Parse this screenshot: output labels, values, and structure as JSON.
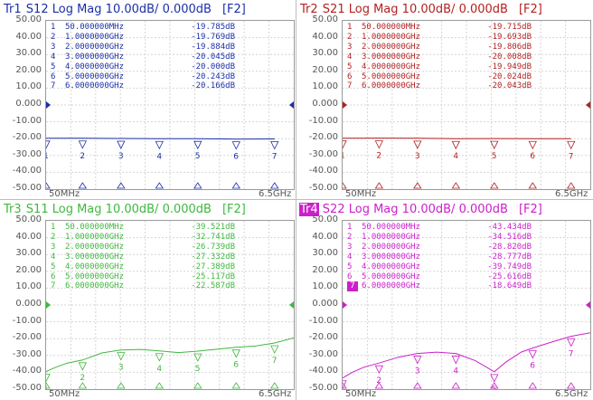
{
  "panes": [
    {
      "id": "tr1",
      "color": "#1b2fa8",
      "trace_label": "Tr1",
      "highlight": false,
      "measurement": "S12",
      "format": "Log Mag",
      "scale": "10.00dB/",
      "reference": "0.000dB",
      "function_key": "[F2]",
      "x_start": "50MHz",
      "x_stop": "6.5GHz",
      "y_ticks": [
        "50.00",
        "40.00",
        "30.00",
        "20.00",
        "10.00",
        "0.000",
        "-10.00",
        "-20.00",
        "-30.00",
        "-40.00",
        "-50.00"
      ],
      "marker_rows": [
        {
          "n": "1",
          "freq": "50.000000MHz",
          "val": "-19.785dB"
        },
        {
          "n": "2",
          "freq": "1.0000000GHz",
          "val": "-19.769dB"
        },
        {
          "n": "3",
          "freq": "2.0000000GHz",
          "val": "-19.884dB"
        },
        {
          "n": "4",
          "freq": "3.0000000GHz",
          "val": "-20.045dB"
        },
        {
          "n": "5",
          "freq": "4.0000000GHz",
          "val": "-20.000dB"
        },
        {
          "n": "6",
          "freq": "5.0000000GHz",
          "val": "-20.243dB"
        },
        {
          "n": "7",
          "freq": "6.0000000GHz",
          "val": "-20.166dB"
        }
      ],
      "active_marker_label": "1"
    },
    {
      "id": "tr2",
      "color": "#b41f1f",
      "trace_label": "Tr2",
      "highlight": false,
      "measurement": "S21",
      "format": "Log Mag",
      "scale": "10.00dB/",
      "reference": "0.000dB",
      "function_key": "[F2]",
      "x_start": "50MHz",
      "x_stop": "6.5GHz",
      "y_ticks": [
        "50.00",
        "40.00",
        "30.00",
        "20.00",
        "10.00",
        "0.000",
        "-10.00",
        "-20.00",
        "-30.00",
        "-40.00",
        "-50.00"
      ],
      "marker_rows": [
        {
          "n": "1",
          "freq": "50.000000MHz",
          "val": "-19.715dB"
        },
        {
          "n": "2",
          "freq": "1.0000000GHz",
          "val": "-19.693dB"
        },
        {
          "n": "3",
          "freq": "2.0000000GHz",
          "val": "-19.806dB"
        },
        {
          "n": "4",
          "freq": "3.0000000GHz",
          "val": "-20.008dB"
        },
        {
          "n": "5",
          "freq": "4.0000000GHz",
          "val": "-19.949dB"
        },
        {
          "n": "6",
          "freq": "5.0000000GHz",
          "val": "-20.024dB"
        },
        {
          "n": "7",
          "freq": "6.0000000GHz",
          "val": "-20.043dB"
        }
      ],
      "active_marker_label": ""
    },
    {
      "id": "tr3",
      "color": "#3fb83f",
      "trace_label": "Tr3",
      "highlight": false,
      "measurement": "S11",
      "format": "Log Mag",
      "scale": "10.00dB/",
      "reference": "0.000dB",
      "function_key": "[F2]",
      "x_start": "50MHz",
      "x_stop": "6.5GHz",
      "y_ticks": [
        "50.00",
        "40.00",
        "30.00",
        "20.00",
        "10.00",
        "0.000",
        "-10.00",
        "-20.00",
        "-30.00",
        "-40.00",
        "-50.00"
      ],
      "marker_rows": [
        {
          "n": "1",
          "freq": "50.000000MHz",
          "val": "-39.521dB"
        },
        {
          "n": "2",
          "freq": "1.0000000GHz",
          "val": "-32.741dB"
        },
        {
          "n": "3",
          "freq": "2.0000000GHz",
          "val": "-26.739dB"
        },
        {
          "n": "4",
          "freq": "3.0000000GHz",
          "val": "-27.332dB"
        },
        {
          "n": "5",
          "freq": "4.0000000GHz",
          "val": "-27.389dB"
        },
        {
          "n": "6",
          "freq": "5.0000000GHz",
          "val": "-25.117dB"
        },
        {
          "n": "7",
          "freq": "6.0000000GHz",
          "val": "-22.587dB"
        }
      ],
      "active_marker_label": "3"
    },
    {
      "id": "tr4",
      "color": "#cc1fcc",
      "trace_label": "Tr4",
      "highlight": true,
      "measurement": "S22",
      "format": "Log Mag",
      "scale": "10.00dB/",
      "reference": "0.000dB",
      "function_key": "[F2]",
      "x_start": "50MHz",
      "x_stop": "6.5GHz",
      "y_ticks": [
        "50.00",
        "40.00",
        "30.00",
        "20.00",
        "10.00",
        "0.000",
        "-10.00",
        "-20.00",
        "-30.00",
        "-40.00",
        "-50.00"
      ],
      "marker_rows": [
        {
          "n": "1",
          "freq": "50.000000MHz",
          "val": "-43.434dB"
        },
        {
          "n": "2",
          "freq": "1.0000000GHz",
          "val": "-34.516dB"
        },
        {
          "n": "3",
          "freq": "2.0000000GHz",
          "val": "-28.820dB"
        },
        {
          "n": "4",
          "freq": "3.0000000GHz",
          "val": "-28.777dB"
        },
        {
          "n": "5",
          "freq": "4.0000000GHz",
          "val": "-39.749dB"
        },
        {
          "n": "6",
          "freq": "5.0000000GHz",
          "val": "-25.616dB"
        },
        {
          "n": "7",
          "freq": "6.0000000GHz",
          "val": "-18.649dB"
        }
      ],
      "active_marker_label": "7"
    }
  ],
  "chart_data": [
    {
      "type": "line",
      "title": "Tr1 S12 Log Mag 10.00dB/ 0.000dB [F2]",
      "xlim": [
        50,
        6500
      ],
      "ylim": [
        -50,
        50
      ],
      "grid": true,
      "series": [
        {
          "name": "S12",
          "x": [
            50,
            1000,
            2000,
            3000,
            4000,
            5000,
            6000
          ],
          "y": [
            -19.785,
            -19.769,
            -19.884,
            -20.045,
            -20.0,
            -20.243,
            -20.166
          ]
        }
      ]
    },
    {
      "type": "line",
      "title": "Tr2 S21 Log Mag 10.00dB/ 0.000dB [F2]",
      "xlim": [
        50,
        6500
      ],
      "ylim": [
        -50,
        50
      ],
      "grid": true,
      "series": [
        {
          "name": "S21",
          "x": [
            50,
            1000,
            2000,
            3000,
            4000,
            5000,
            6000
          ],
          "y": [
            -19.715,
            -19.693,
            -19.806,
            -20.008,
            -19.949,
            -20.024,
            -20.043
          ]
        }
      ]
    },
    {
      "type": "line",
      "title": "Tr3 S11 Log Mag 10.00dB/ 0.000dB [F2]",
      "xlim": [
        50,
        6500
      ],
      "ylim": [
        -50,
        50
      ],
      "grid": true,
      "series": [
        {
          "name": "S11",
          "x": [
            50,
            300,
            600,
            1000,
            1500,
            2000,
            2500,
            3000,
            3500,
            4000,
            4500,
            5000,
            5500,
            6000,
            6500
          ],
          "y": [
            -39.5,
            -37,
            -34.5,
            -32.7,
            -28.5,
            -26.7,
            -26.4,
            -27.3,
            -28.3,
            -27.4,
            -26.3,
            -25.1,
            -24.4,
            -22.6,
            -19.5
          ]
        }
      ]
    },
    {
      "type": "line",
      "title": "Tr4 S22 Log Mag 10.00dB/ 0.000dB [F2]",
      "xlim": [
        50,
        6500
      ],
      "ylim": [
        -50,
        50
      ],
      "grid": true,
      "series": [
        {
          "name": "S22",
          "x": [
            50,
            300,
            600,
            1000,
            1500,
            2000,
            2500,
            3000,
            3500,
            3800,
            4000,
            4300,
            4700,
            5000,
            5500,
            6000,
            6500
          ],
          "y": [
            -43.4,
            -40,
            -37,
            -34.5,
            -31,
            -28.8,
            -28,
            -28.8,
            -33,
            -37,
            -39.7,
            -34,
            -28,
            -25.6,
            -22,
            -18.6,
            -16.5
          ]
        }
      ]
    }
  ]
}
